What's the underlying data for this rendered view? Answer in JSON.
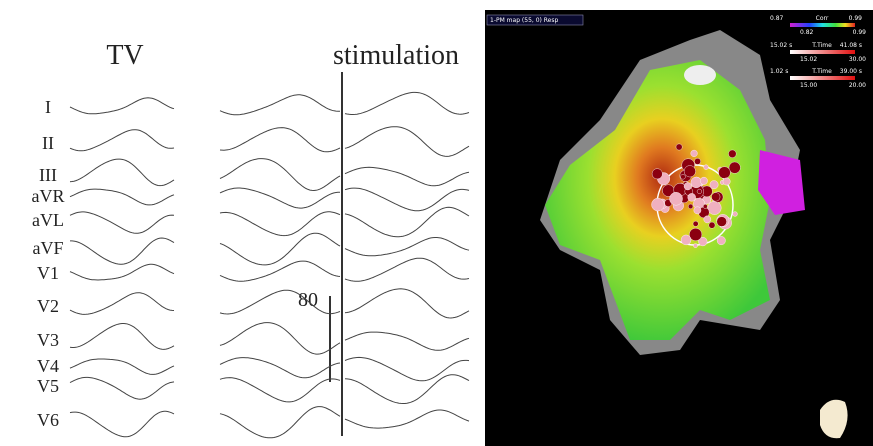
{
  "left": {
    "title": "TV",
    "stimulation": "stimulation",
    "scale": "80",
    "leads": [
      "I",
      "II",
      "III",
      "aVR",
      "aVL",
      "aVF",
      "V1",
      "V2",
      "V3",
      "V4",
      "V5",
      "V6"
    ]
  },
  "right": {
    "map_label": "1-PM map (55, 0) Resp",
    "corr": {
      "min": "0.87",
      "name": "Corr",
      "max": "0.99",
      "low": "0.82",
      "high": "0.99"
    },
    "ttime1": {
      "min": "15.02 s",
      "name": "T.Time",
      "max": "41.08 s",
      "low": "15.02",
      "high": "30.00"
    },
    "ttime2": {
      "min": "1.02 s",
      "name": "T.Time",
      "max": "39.00 s",
      "low": "15.00",
      "high": "20.00"
    }
  }
}
